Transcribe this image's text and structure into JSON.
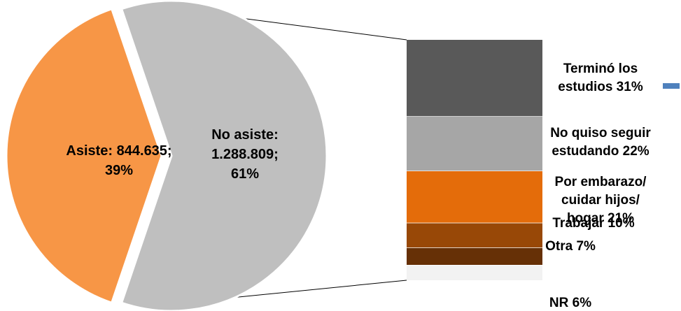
{
  "chart_data": [
    {
      "type": "pie",
      "categories": [
        "Asiste",
        "No asiste"
      ],
      "values": [
        844635,
        1288809
      ],
      "percent": [
        39,
        61
      ],
      "colors": [
        "#F79646",
        "#BFBFBF"
      ],
      "labels": [
        [
          "Asiste:  844.635;",
          "39%"
        ],
        [
          "No asiste:",
          "1.288.809;",
          "61%"
        ]
      ],
      "exploded": "Asiste"
    },
    {
      "type": "bar",
      "stacked": true,
      "breakdown_of": "No asiste",
      "categories": [
        "Terminó los estudios",
        "No quiso seguir estudando",
        "Por embarazo/ cuidar hijos/ hogar",
        "Trabajar",
        "Otra",
        "NR"
      ],
      "values": [
        31,
        22,
        21,
        10,
        7,
        6
      ],
      "colors": [
        "#595959",
        "#A6A6A6",
        "#E46C0A",
        "#984807",
        "#663006",
        "#F2F2F2"
      ],
      "labels": [
        [
          "Terminó los",
          "estudios 31%"
        ],
        [
          "No quiso seguir",
          "estudando  22%"
        ],
        [
          "Por embarazo/",
          "cuidar hijos/",
          "hogar 21%"
        ],
        [
          "Trabajar 10%"
        ],
        [
          "Otra 7%"
        ],
        [
          "NR 6%"
        ]
      ]
    }
  ],
  "legend_swatch_color": "#4F81BD"
}
